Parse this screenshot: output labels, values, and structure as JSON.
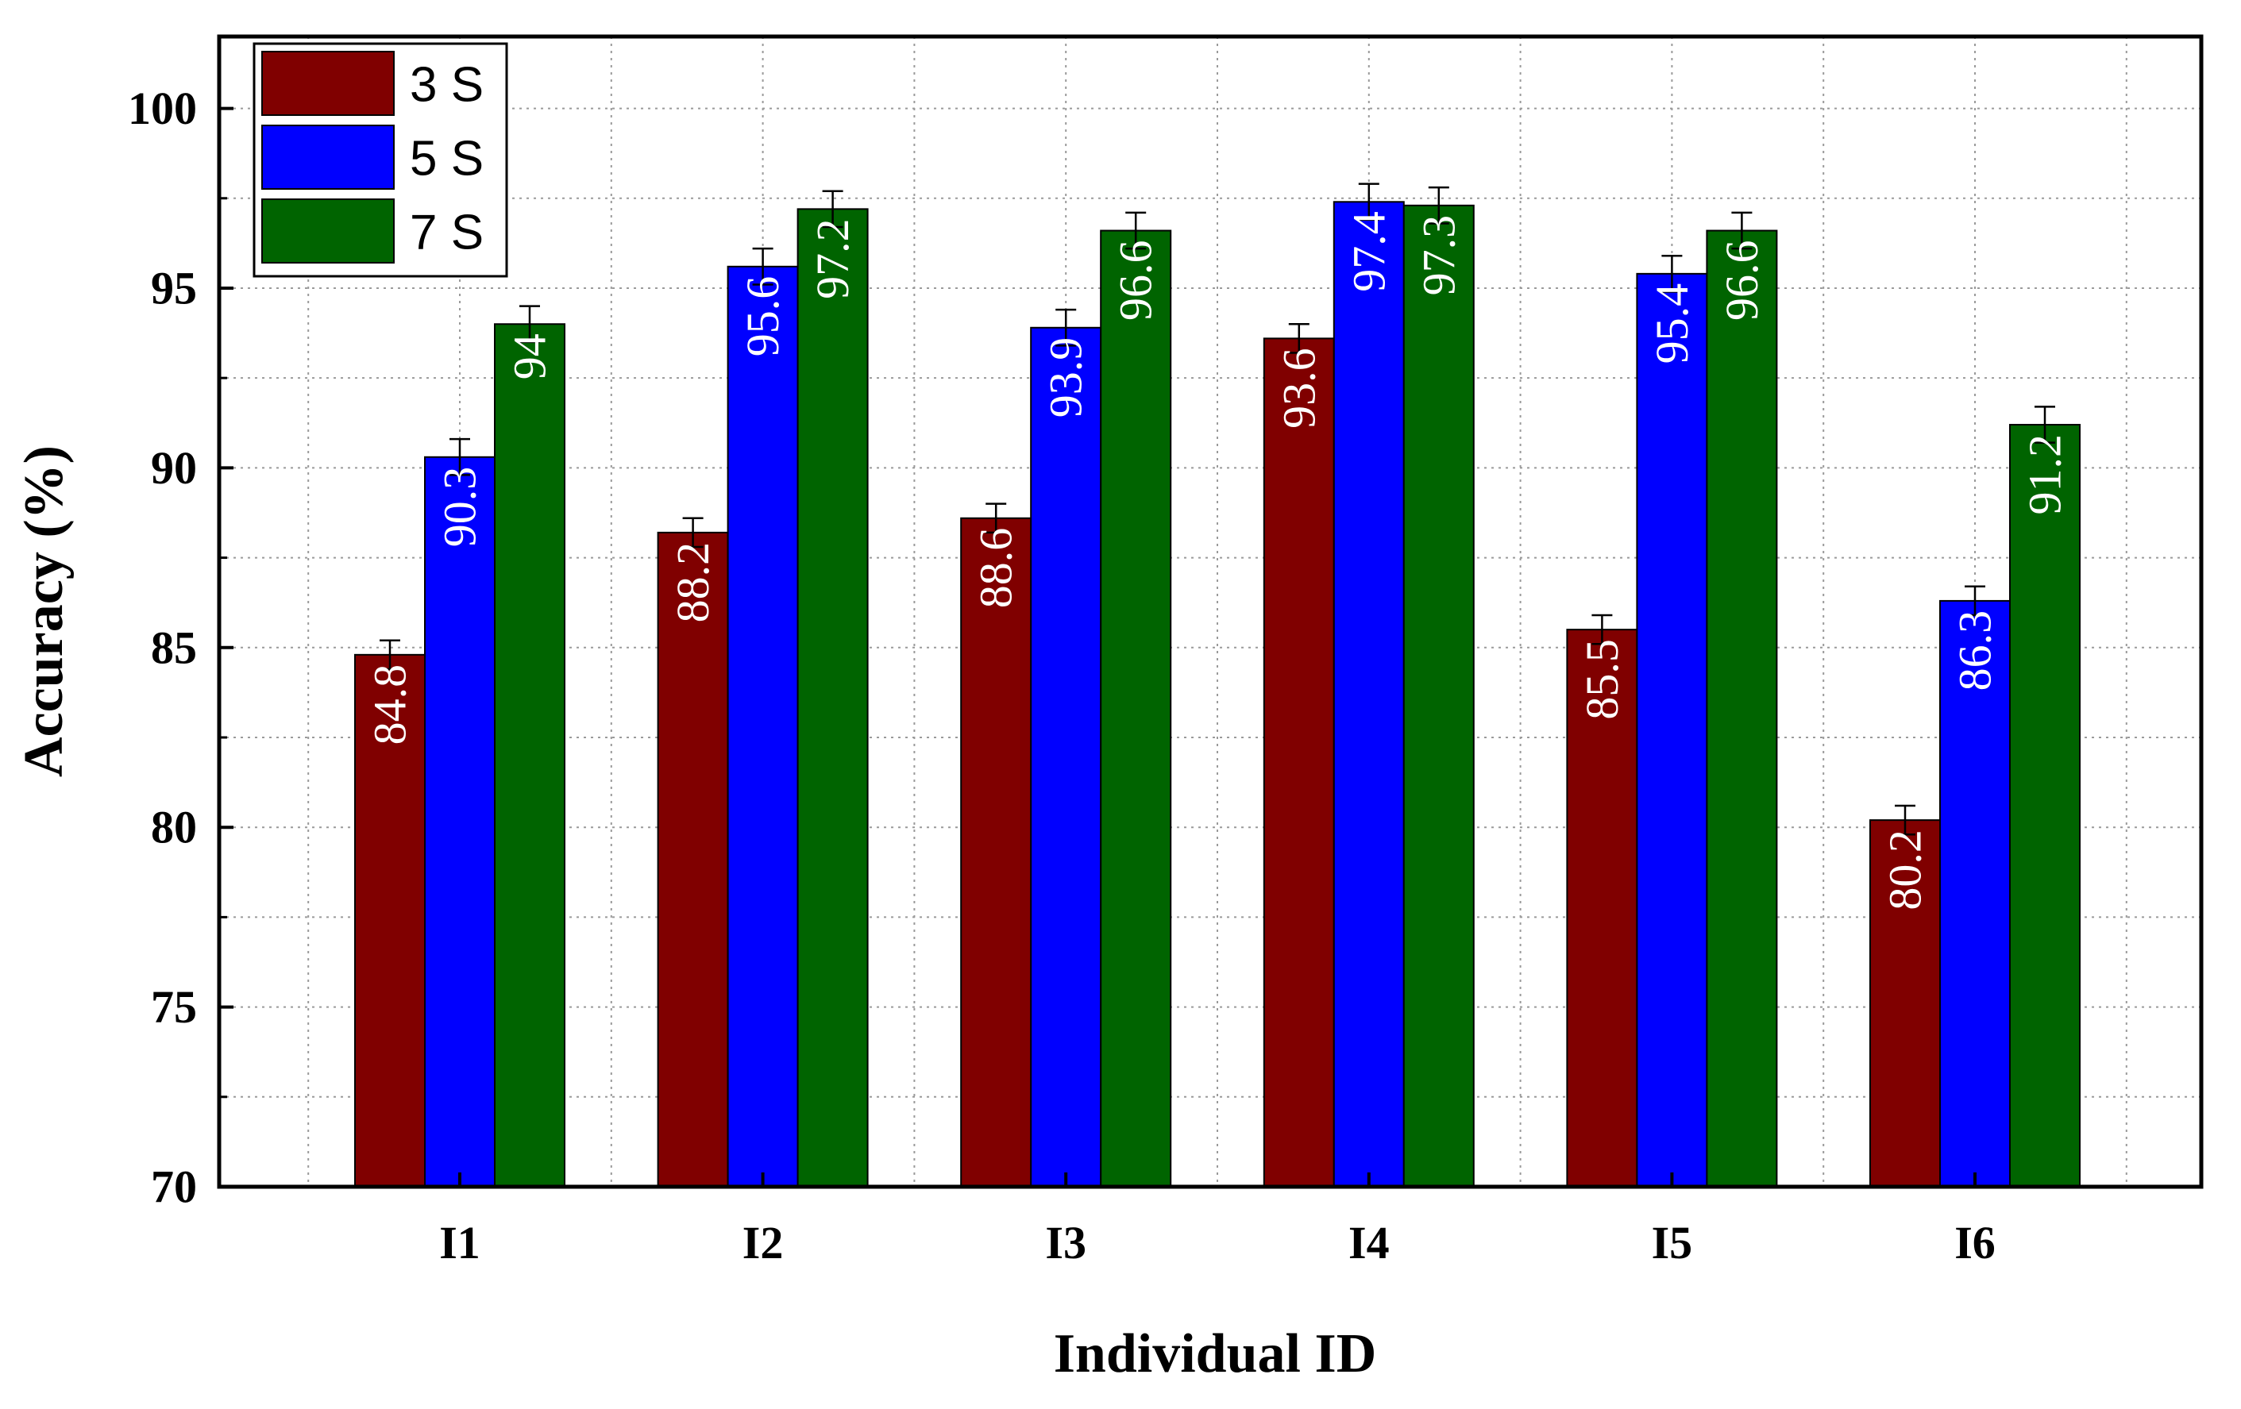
{
  "chart_data": {
    "type": "bar",
    "title": "",
    "xlabel": "Individual ID",
    "ylabel": "Accuracy (%)",
    "ylim": [
      70,
      102
    ],
    "yticks": [
      70,
      75,
      80,
      85,
      90,
      95,
      100
    ],
    "categories": [
      "I1",
      "I2",
      "I3",
      "I4",
      "I5",
      "I6"
    ],
    "series": [
      {
        "name": "3 S",
        "color": "#800000",
        "values": [
          84.8,
          88.2,
          88.6,
          93.6,
          85.5,
          80.2
        ],
        "labels": [
          "84.8",
          "88.2",
          "88.6",
          "93.6",
          "85.5",
          "80.2"
        ],
        "errors": [
          0.4,
          0.4,
          0.4,
          0.4,
          0.4,
          0.4
        ]
      },
      {
        "name": "5 S",
        "color": "#0000ff",
        "values": [
          90.3,
          95.6,
          93.9,
          97.4,
          95.4,
          86.3
        ],
        "labels": [
          "90.3",
          "95.6",
          "93.9",
          "97.4",
          "95.4",
          "86.3"
        ],
        "errors": [
          0.5,
          0.5,
          0.5,
          0.5,
          0.5,
          0.4
        ]
      },
      {
        "name": "7 S",
        "color": "#006400",
        "values": [
          94,
          97.2,
          96.6,
          97.3,
          96.6,
          91.2
        ],
        "labels": [
          "94",
          "97.2",
          "96.6",
          "97.3",
          "96.6",
          "91.2"
        ],
        "errors": [
          0.5,
          0.5,
          0.5,
          0.5,
          0.5,
          0.5
        ]
      }
    ],
    "grid": true,
    "legend_position": "top-left"
  }
}
